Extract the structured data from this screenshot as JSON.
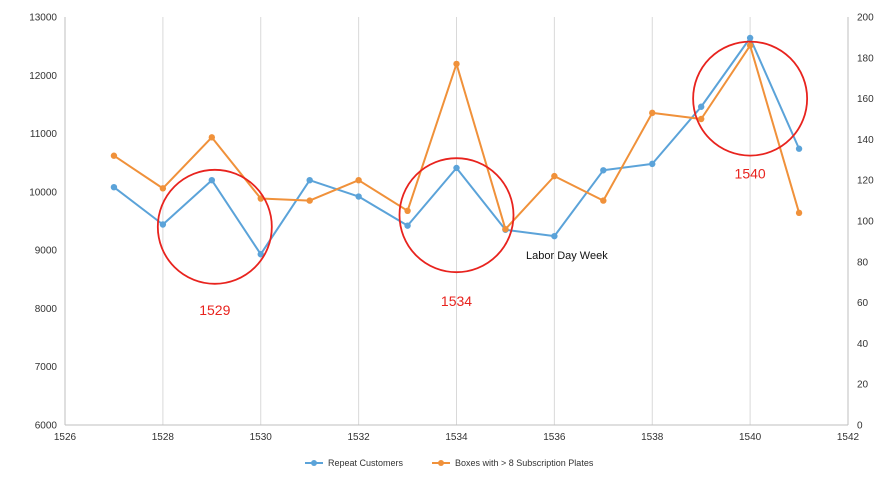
{
  "chart_data": {
    "type": "line",
    "title": "",
    "xlabel": "",
    "ylabel": "",
    "xlim": [
      1526,
      1542
    ],
    "ylim_left": [
      6000,
      13000
    ],
    "ylim_right": [
      0,
      200
    ],
    "x_ticks": [
      "1526",
      "1528",
      "1530",
      "1532",
      "1534",
      "1536",
      "1538",
      "1540",
      "1542"
    ],
    "y_left_ticks": [
      "6000",
      "7000",
      "8000",
      "9000",
      "10000",
      "11000",
      "12000",
      "13000"
    ],
    "y_right_ticks": [
      "0",
      "20",
      "40",
      "60",
      "80",
      "100",
      "120",
      "140",
      "160",
      "180",
      "200"
    ],
    "grid": "vertical",
    "legend_position": "bottom",
    "series": [
      {
        "name": "Repeat Customers",
        "axis": "left",
        "color": "#5ba3d9",
        "x": [
          1527,
          1528,
          1529,
          1530,
          1531,
          1532,
          1533,
          1534,
          1535,
          1536,
          1537,
          1538,
          1539,
          1540,
          1541
        ],
        "values": [
          10080,
          9440,
          10200,
          8930,
          10200,
          9920,
          9420,
          10410,
          9350,
          9240,
          10370,
          10480,
          11460,
          12640,
          10740
        ]
      },
      {
        "name": "Boxes with > 8 Subscription Plates",
        "axis": "right",
        "color": "#f0913a",
        "x": [
          1527,
          1528,
          1529,
          1530,
          1531,
          1532,
          1533,
          1534,
          1535,
          1536,
          1537,
          1538,
          1539,
          1540,
          1541
        ],
        "values": [
          132,
          116,
          141,
          111,
          110,
          120,
          105,
          177,
          96,
          122,
          110,
          153,
          150,
          186,
          104
        ]
      }
    ],
    "annotations": [
      {
        "text": "1529",
        "color": "#e8231e",
        "circle_x": 1529,
        "circle_y": 9400
      },
      {
        "text": "1534",
        "color": "#e8231e",
        "circle_x": 1534,
        "circle_y": 9600
      },
      {
        "text": "1540",
        "color": "#e8231e",
        "circle_x": 1540,
        "circle_y": 11600
      },
      {
        "text": "Labor Day Week",
        "color": "#111111",
        "circle_x": null,
        "circle_y": null
      }
    ]
  }
}
